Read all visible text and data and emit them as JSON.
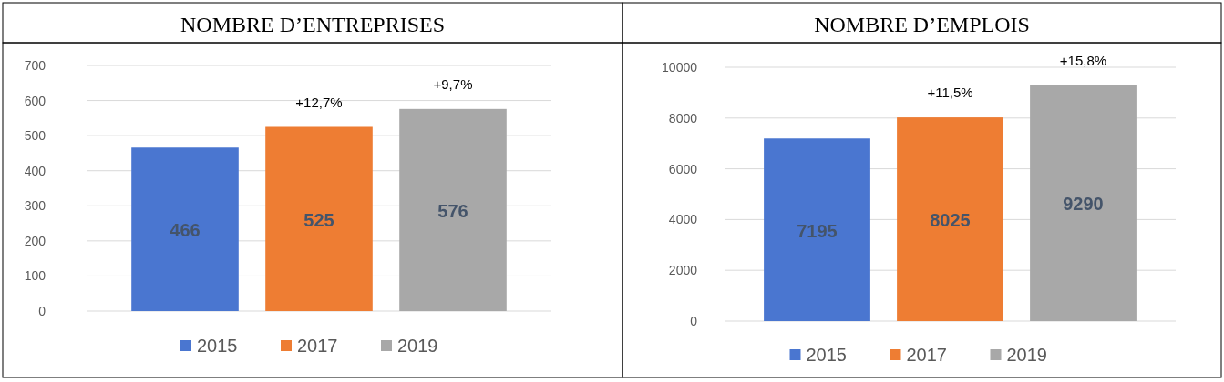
{
  "chart_data": [
    {
      "type": "bar",
      "title": "NOMBRE D’ENTREPRISES",
      "categories": [
        null
      ],
      "series": [
        {
          "name": "2015",
          "color": "#4a76d0",
          "values": [
            466
          ]
        },
        {
          "name": "2017",
          "color": "#ee7d33",
          "values": [
            525
          ]
        },
        {
          "name": "2019",
          "color": "#a8a8a8",
          "values": [
            576
          ]
        }
      ],
      "ylim": [
        0,
        700
      ],
      "yticks": [
        0,
        100,
        200,
        300,
        400,
        500,
        600,
        700
      ],
      "grid": "y",
      "legend": "bottom",
      "data_labels": true,
      "annotations": [
        {
          "text": "+12,7%",
          "y": 525
        },
        {
          "text": "+9,7%",
          "y": 576
        }
      ]
    },
    {
      "type": "bar",
      "title": "NOMBRE D’EMPLOIS",
      "categories": [
        null
      ],
      "series": [
        {
          "name": "2015",
          "color": "#4a76d0",
          "values": [
            7195
          ]
        },
        {
          "name": "2017",
          "color": "#ee7d33",
          "values": [
            8025
          ]
        },
        {
          "name": "2019",
          "color": "#a8a8a8",
          "values": [
            9290
          ]
        }
      ],
      "ylim": [
        0,
        10000
      ],
      "yticks": [
        0,
        2000,
        4000,
        6000,
        8000,
        10000
      ],
      "grid": "y",
      "legend": "bottom",
      "data_labels": true,
      "annotations": [
        {
          "text": "+11,5%",
          "y": 8025
        },
        {
          "text": "+15,8%",
          "y": 9290
        }
      ]
    }
  ]
}
